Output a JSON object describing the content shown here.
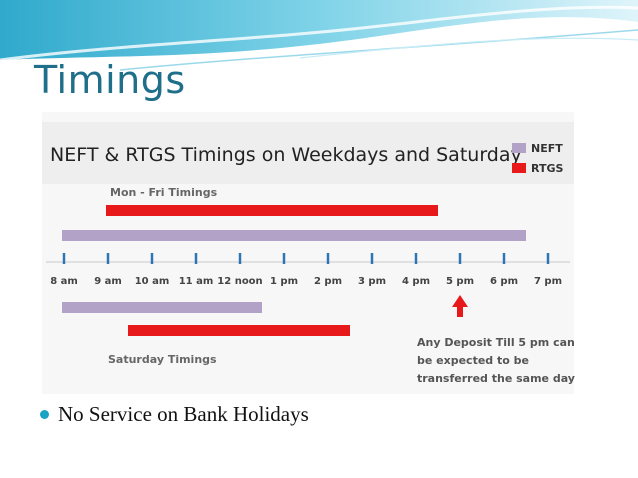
{
  "slide": {
    "title": "Timings",
    "bullet": "No Service on Bank Holidays"
  },
  "chart_data": {
    "type": "bar",
    "title": "NEFT & RTGS Timings on Weekdays and Saturday",
    "legend": [
      {
        "name": "NEFT",
        "color": "#b3a2c7"
      },
      {
        "name": "RTGS",
        "color": "#e8191b"
      }
    ],
    "legend_position": "top-right",
    "ticks": [
      "8 am",
      "9 am",
      "10 am",
      "11 am",
      "12 noon",
      "1 pm",
      "2 pm",
      "3 pm",
      "4 pm",
      "5 pm",
      "6 pm",
      "7 pm"
    ],
    "weekday_label": "Mon - Fri Timings",
    "saturday_label": "Saturday Timings",
    "bars": [
      {
        "group": "Mon - Fri Timings",
        "series": "RTGS",
        "start": 9,
        "end": 16.5
      },
      {
        "group": "Mon - Fri Timings",
        "series": "NEFT",
        "start": 8,
        "end": 18.5
      },
      {
        "group": "Saturday Timings",
        "series": "NEFT",
        "start": 8,
        "end": 12.5
      },
      {
        "group": "Saturday Timings",
        "series": "RTGS",
        "start": 9.5,
        "end": 14.5
      }
    ],
    "annotation": {
      "at": 17,
      "lines": [
        "Any Deposit Till 5 pm can",
        "be expected to be",
        "transferred the same day"
      ]
    },
    "colors": {
      "axis": "#2e75b6",
      "arrow": "#e8191b"
    }
  }
}
